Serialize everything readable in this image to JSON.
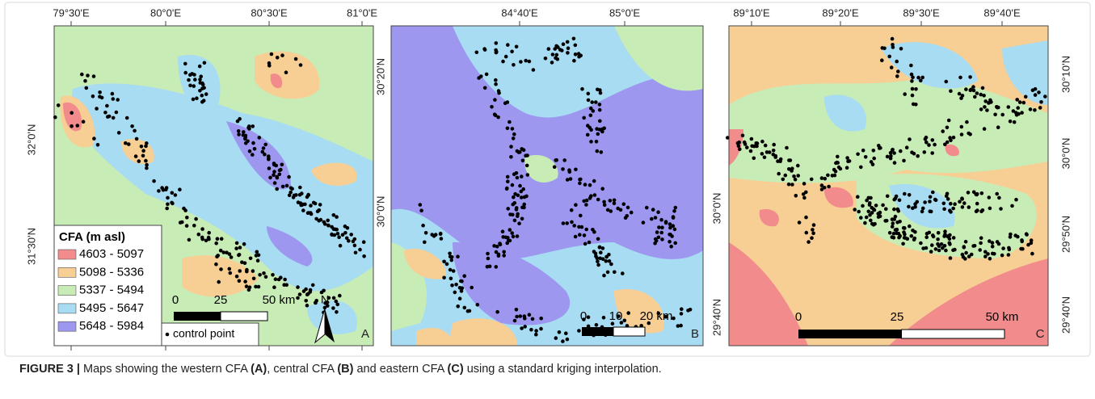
{
  "panels": [
    {
      "letter": "A",
      "top_labels": [
        "79°30'E",
        "80°0'E",
        "80°30'E",
        "81°0'E"
      ],
      "left_labels": [
        "32°0'N",
        "31°30'N"
      ],
      "scale_labels": [
        "0",
        "25",
        "50 km"
      ],
      "north": "N"
    },
    {
      "letter": "B",
      "top_labels": [
        "84°40'E",
        "85°0'E"
      ],
      "left_labels": [
        "30°20'N",
        "30°0'N"
      ],
      "right_labels": [
        "30°0'N",
        "29°40'N"
      ],
      "scale_labels": [
        "0",
        "10",
        "20 km"
      ]
    },
    {
      "letter": "C",
      "top_labels": [
        "89°10'E",
        "89°20'E",
        "89°30'E",
        "89°40'E"
      ],
      "right_labels": [
        "30°10'N",
        "30°0'N",
        "29°50'N",
        "29°40'N"
      ],
      "scale_labels": [
        "0",
        "25",
        "50 km"
      ]
    }
  ],
  "legend": {
    "title": "CFA (m asl)",
    "items": [
      {
        "label": "4603 - 5097",
        "color": "#f28c8c"
      },
      {
        "label": "5098 - 5336",
        "color": "#f7cf95"
      },
      {
        "label": "5337 - 5494",
        "color": "#c8ecb6"
      },
      {
        "label": "5495 - 5647",
        "color": "#a7dcf2"
      },
      {
        "label": "5648 - 5984",
        "color": "#9d97f0"
      }
    ],
    "point_label": "control point"
  },
  "caption": {
    "label": "FIGURE 3 |",
    "parts": [
      {
        "text": " Maps showing the western CFA ",
        "bold": false
      },
      {
        "text": "(A)",
        "bold": true
      },
      {
        "text": ", central CFA ",
        "bold": false
      },
      {
        "text": "(B)",
        "bold": true
      },
      {
        "text": " and eastern CFA ",
        "bold": false
      },
      {
        "text": "(C)",
        "bold": true
      },
      {
        "text": " using a standard kriging interpolation.",
        "bold": false
      }
    ]
  }
}
